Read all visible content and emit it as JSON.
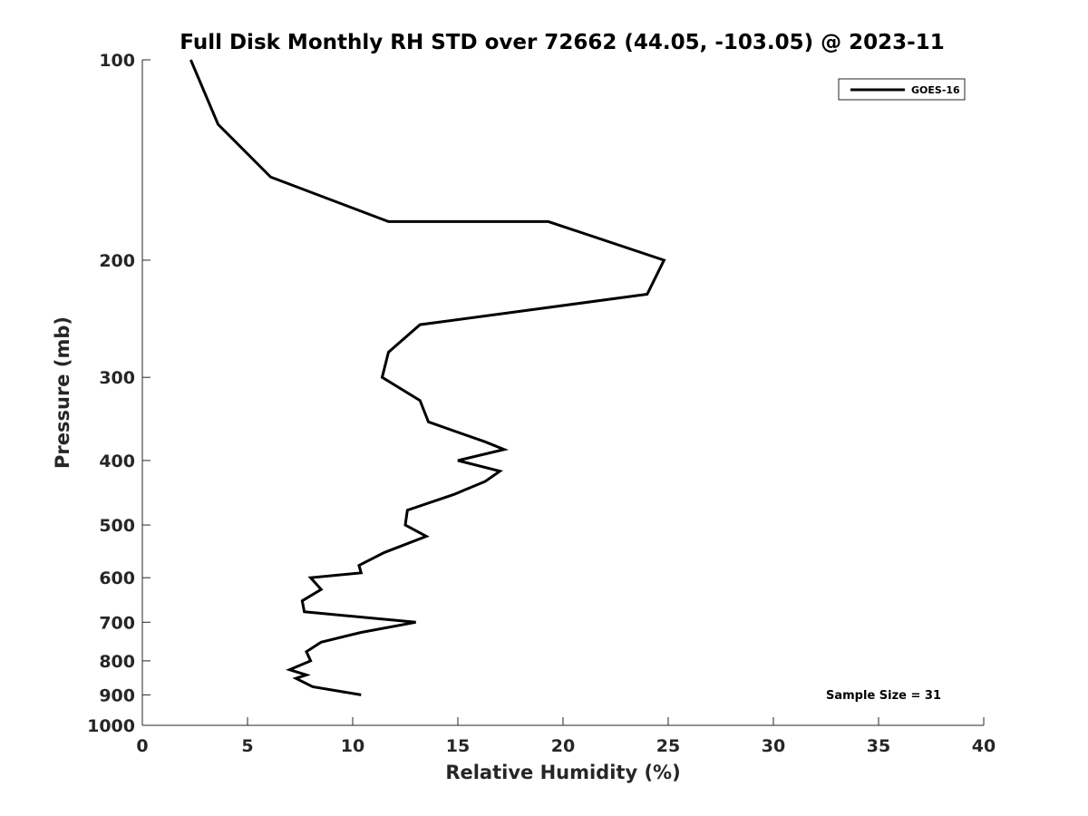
{
  "chart_data": {
    "type": "line",
    "title": "Full Disk Monthly RH STD over 72662 (44.05, -103.05) @ 2023-11",
    "xlabel": "Relative Humidity (%)",
    "ylabel": "Pressure (mb)",
    "xlim": [
      0,
      40
    ],
    "ylim": [
      100,
      1000
    ],
    "yscale": "log",
    "yaxis_reversed": true,
    "grid": false,
    "legend_position": "top-right",
    "x_ticks": [
      0,
      5,
      10,
      15,
      20,
      25,
      30,
      35,
      40
    ],
    "x_tick_labels": [
      "0",
      "5",
      "10",
      "15",
      "20",
      "25",
      "30",
      "35",
      "40"
    ],
    "y_ticks": [
      100,
      200,
      300,
      400,
      500,
      600,
      700,
      800,
      900,
      1000
    ],
    "y_tick_labels": [
      "100",
      "200",
      "300",
      "400",
      "500",
      "600",
      "700",
      "800",
      "900",
      "1000"
    ],
    "series": [
      {
        "name": "GOES-16",
        "color": "#000000",
        "points": [
          {
            "x": 2.3,
            "y": 100
          },
          {
            "x": 3.6,
            "y": 125
          },
          {
            "x": 6.1,
            "y": 150
          },
          {
            "x": 11.7,
            "y": 175
          },
          {
            "x": 19.3,
            "y": 175
          },
          {
            "x": 24.8,
            "y": 200
          },
          {
            "x": 24.0,
            "y": 225
          },
          {
            "x": 13.2,
            "y": 250
          },
          {
            "x": 11.7,
            "y": 275
          },
          {
            "x": 11.4,
            "y": 300
          },
          {
            "x": 13.2,
            "y": 325
          },
          {
            "x": 13.6,
            "y": 350
          },
          {
            "x": 16.3,
            "y": 375
          },
          {
            "x": 17.2,
            "y": 385
          },
          {
            "x": 15.0,
            "y": 400
          },
          {
            "x": 17.0,
            "y": 415
          },
          {
            "x": 16.3,
            "y": 430
          },
          {
            "x": 14.8,
            "y": 450
          },
          {
            "x": 12.6,
            "y": 475
          },
          {
            "x": 12.5,
            "y": 500
          },
          {
            "x": 13.5,
            "y": 520
          },
          {
            "x": 11.5,
            "y": 550
          },
          {
            "x": 10.3,
            "y": 575
          },
          {
            "x": 10.4,
            "y": 590
          },
          {
            "x": 8.0,
            "y": 600
          },
          {
            "x": 8.5,
            "y": 625
          },
          {
            "x": 7.6,
            "y": 650
          },
          {
            "x": 7.7,
            "y": 675
          },
          {
            "x": 13.0,
            "y": 700
          },
          {
            "x": 10.4,
            "y": 725
          },
          {
            "x": 8.5,
            "y": 750
          },
          {
            "x": 7.8,
            "y": 775
          },
          {
            "x": 8.0,
            "y": 800
          },
          {
            "x": 7.0,
            "y": 825
          },
          {
            "x": 7.8,
            "y": 840
          },
          {
            "x": 7.3,
            "y": 850
          },
          {
            "x": 8.1,
            "y": 875
          },
          {
            "x": 10.4,
            "y": 900
          }
        ]
      }
    ],
    "annotations": [
      {
        "text": "Sample Size = 31",
        "position": "bottom-right"
      }
    ]
  }
}
